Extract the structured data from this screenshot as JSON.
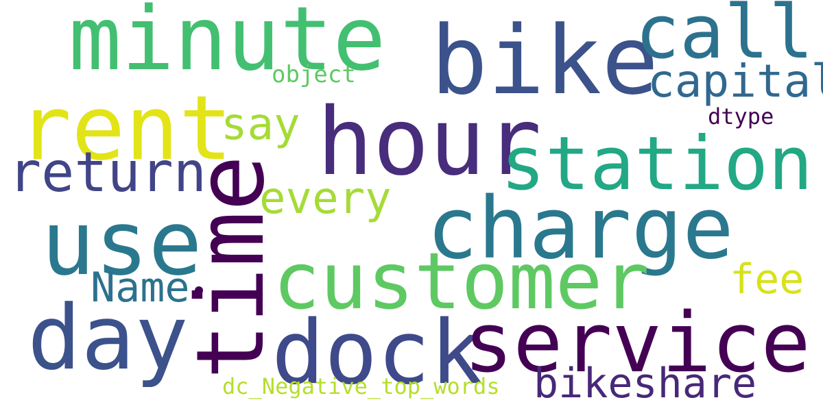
{
  "words": {
    "minute": {
      "text": "minute",
      "color": "#43bf71"
    },
    "bike": {
      "text": "bike",
      "color": "#3b528b"
    },
    "call": {
      "text": "call",
      "color": "#2c728e"
    },
    "capital": {
      "text": "capital",
      "color": "#31688e"
    },
    "object": {
      "text": "object",
      "color": "#5ec962"
    },
    "rent": {
      "text": "rent",
      "color": "#e2e418"
    },
    "hour": {
      "text": "hour",
      "color": "#472d7b"
    },
    "say": {
      "text": "say",
      "color": "#a5db36"
    },
    "dtype": {
      "text": "dtype",
      "color": "#440154"
    },
    "station": {
      "text": "station",
      "color": "#22a884"
    },
    "return": {
      "text": "return",
      "color": "#414487"
    },
    "every": {
      "text": "every",
      "color": "#a5db36"
    },
    "charge": {
      "text": "charge",
      "color": "#2a788e"
    },
    "use": {
      "text": "use",
      "color": "#2a788e"
    },
    "time": {
      "text": "time",
      "color": "#440154"
    },
    "customer": {
      "text": "customer",
      "color": "#5ec962"
    },
    "Name": {
      "text": "Name",
      "color": "#2c728e"
    },
    "fee": {
      "text": "fee",
      "color": "#d8e219"
    },
    "day": {
      "text": "day",
      "color": "#3b528b"
    },
    "dock": {
      "text": "dock",
      "color": "#3e4a89"
    },
    "service": {
      "text": "service",
      "color": "#440154"
    },
    "bikeshare": {
      "text": "bikeshare",
      "color": "#482878"
    },
    "dc_Negative_top_words": {
      "text": "dc_Negative_top_words",
      "color": "#b5de2b"
    }
  },
  "dot_color": "#440154"
}
